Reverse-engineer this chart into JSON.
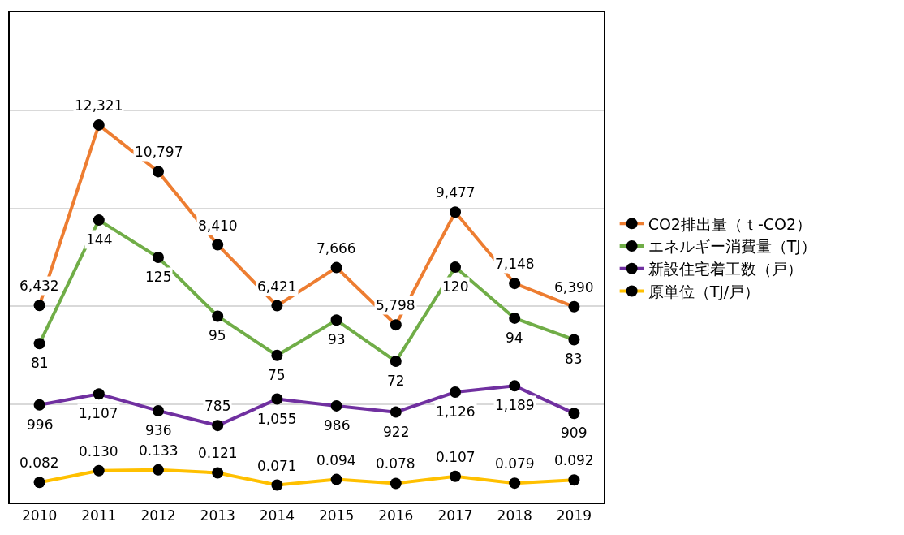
{
  "chart_data": [
    {
      "type": "line",
      "categories": [
        "2010",
        "2011",
        "2012",
        "2013",
        "2014",
        "2015",
        "2016",
        "2017",
        "2018",
        "2019"
      ],
      "series": [
        {
          "name": "CO2排出量（ｔ-CO2）",
          "color": "#ed7d31",
          "values": [
            6432,
            12321,
            10797,
            8410,
            6421,
            7666,
            5798,
            9477,
            7148,
            6390
          ],
          "value_labels": [
            "6,432",
            "12,321",
            "10,797",
            "8,410",
            "6,421",
            "7,666",
            "5,798",
            "9,477",
            "7,148",
            "6,390"
          ]
        },
        {
          "name": "エネルギー消費量（TJ）",
          "color": "#70ad47",
          "axis": "y2",
          "values": [
            81,
            144,
            125,
            95,
            75,
            93,
            72,
            120,
            94,
            83
          ],
          "value_labels": [
            "81",
            "144",
            "125",
            "95",
            "75",
            "93",
            "72",
            "120",
            "94",
            "83"
          ]
        }
      ],
      "ylim": [
        0,
        16000
      ],
      "yticks": [
        {
          "value": 0,
          "label": null
        },
        {
          "value": 3200,
          "label": null
        },
        {
          "value": 6400,
          "label": null
        },
        {
          "value": 9600,
          "label": null
        },
        {
          "value": 12800,
          "label": null
        },
        {
          "value": 16000,
          "label": null
        }
      ],
      "y2lim": [
        0,
        250
      ],
      "tick_labels": "x",
      "grid": "y",
      "legend": "right",
      "marker": "circle",
      "line_style": "solid"
    },
    {
      "type": "line",
      "categories": [
        "2010",
        "2011",
        "2012",
        "2013",
        "2014",
        "2015",
        "2016",
        "2017",
        "2018",
        "2019"
      ],
      "series": [
        {
          "name": "新設住宅着工数（戸）",
          "color": "#7030a0",
          "values": [
            996,
            1107,
            936,
            785,
            1055,
            986,
            922,
            1126,
            1189,
            909
          ],
          "value_labels": [
            "996",
            "1,107",
            "936",
            "785",
            "1,055",
            "986",
            "922",
            "1,126",
            "1,189",
            "909"
          ]
        },
        {
          "name": "原単位（TJ/戸）",
          "color": "#ffc000",
          "axis": "y2",
          "values": [
            0.082,
            0.13,
            0.133,
            0.121,
            0.071,
            0.094,
            0.078,
            0.107,
            0.079,
            0.092
          ],
          "value_labels": [
            "0.082",
            "0.130",
            "0.133",
            "0.121",
            "0.071",
            "0.094",
            "0.078",
            "0.107",
            "0.079",
            "0.092"
          ]
        }
      ],
      "ylim": [
        0,
        5000
      ],
      "y2lim": [
        0,
        2
      ],
      "tick_labels": false,
      "legend": "right",
      "marker": "circle",
      "line_style": "solid"
    }
  ]
}
